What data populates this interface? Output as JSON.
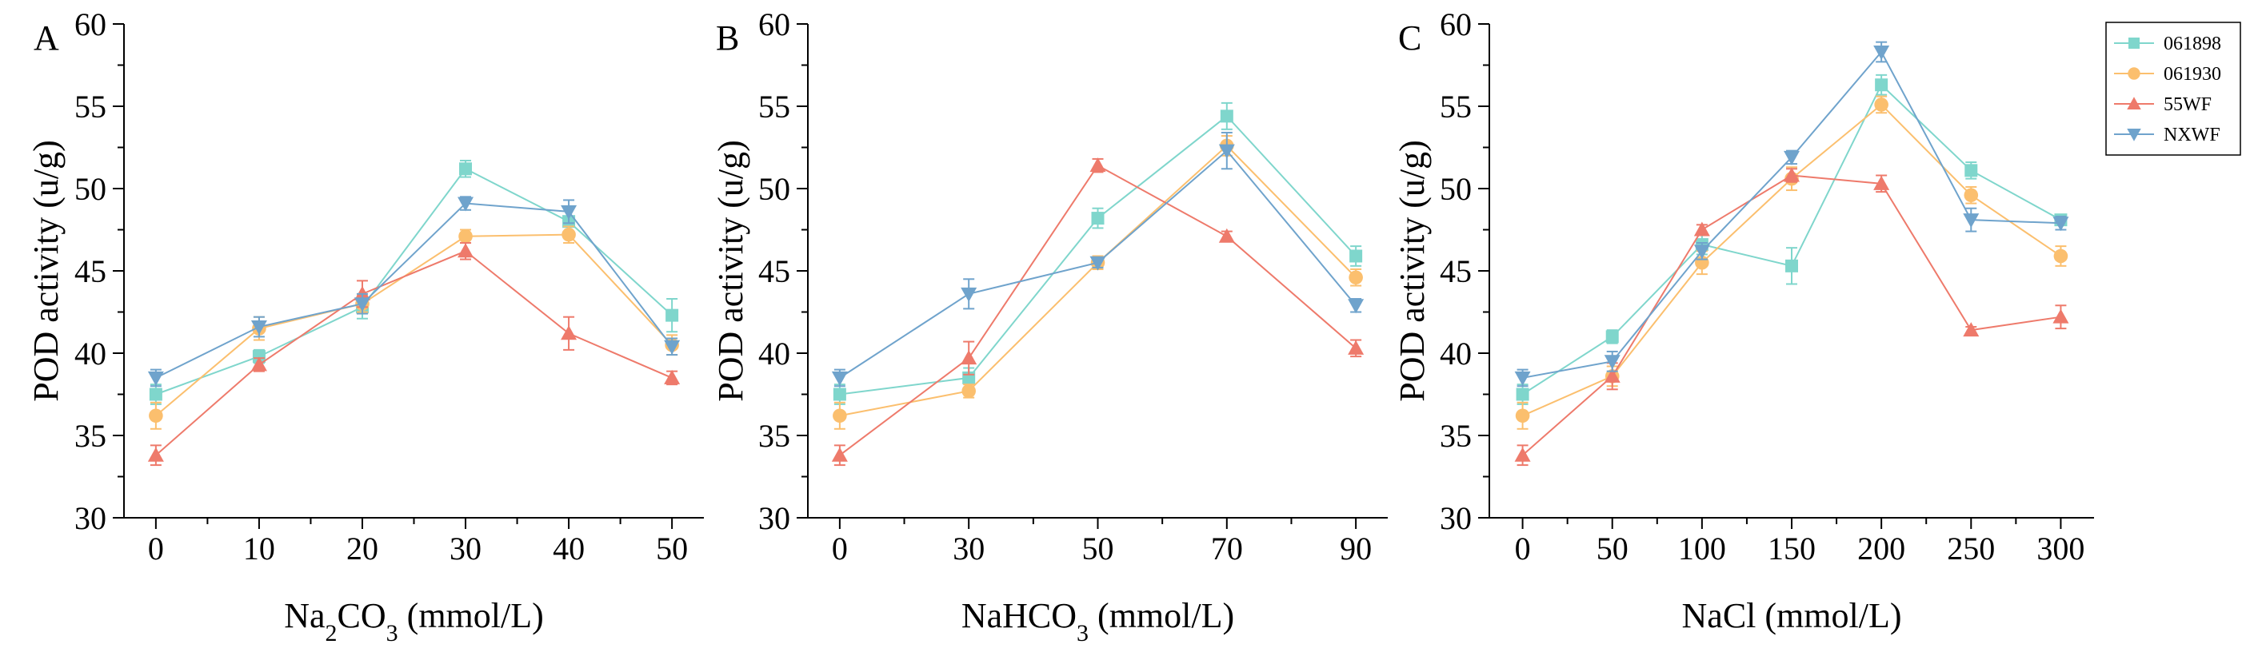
{
  "chart_data": [
    {
      "type": "line",
      "panel": "A",
      "xlabel_main": "Na",
      "xlabel_sub1": "2",
      "xlabel_mid": "CO",
      "xlabel_sub2": "3",
      "xlabel_tail": " (mmol/L)",
      "ylabel": "POD activity (u/g)",
      "categories": [
        "0",
        "10",
        "20",
        "30",
        "40",
        "50"
      ],
      "ylim": [
        30,
        60
      ],
      "yticks": [
        30,
        35,
        40,
        45,
        50,
        55,
        60
      ],
      "series": [
        {
          "name": "061898",
          "values": [
            37.5,
            39.8,
            42.8,
            51.2,
            48.0,
            42.3
          ],
          "errors": [
            0.6,
            0.4,
            0.7,
            0.5,
            0.9,
            1.0
          ]
        },
        {
          "name": "061930",
          "values": [
            36.2,
            41.5,
            43.0,
            47.1,
            47.2,
            40.5
          ],
          "errors": [
            0.8,
            0.7,
            0.5,
            0.4,
            0.5,
            0.6
          ]
        },
        {
          "name": "55WF",
          "values": [
            33.8,
            39.3,
            43.6,
            46.2,
            41.2,
            38.5
          ],
          "errors": [
            0.6,
            0.4,
            0.8,
            0.5,
            1.0,
            0.4
          ]
        },
        {
          "name": "NXWF",
          "values": [
            38.5,
            41.6,
            43.0,
            49.1,
            48.6,
            40.4
          ],
          "errors": [
            0.5,
            0.6,
            0.6,
            0.4,
            0.7,
            0.5
          ]
        }
      ]
    },
    {
      "type": "line",
      "panel": "B",
      "xlabel_main": "NaHCO",
      "xlabel_sub1": "",
      "xlabel_mid": "",
      "xlabel_sub2": "3",
      "xlabel_tail": " (mmol/L)",
      "ylabel": "POD activity (u/g)",
      "categories": [
        "0",
        "30",
        "50",
        "70",
        "90"
      ],
      "ylim": [
        30,
        60
      ],
      "yticks": [
        30,
        35,
        40,
        45,
        50,
        55,
        60
      ],
      "series": [
        {
          "name": "061898",
          "values": [
            37.5,
            38.5,
            48.2,
            54.4,
            45.9
          ],
          "errors": [
            0.6,
            0.6,
            0.6,
            0.8,
            0.6
          ]
        },
        {
          "name": "061930",
          "values": [
            36.2,
            37.7,
            45.5,
            52.6,
            44.6
          ],
          "errors": [
            0.8,
            0.4,
            0.4,
            0.6,
            0.5
          ]
        },
        {
          "name": "55WF",
          "values": [
            33.8,
            39.7,
            51.4,
            47.1,
            40.3
          ],
          "errors": [
            0.6,
            1.0,
            0.4,
            0.3,
            0.5
          ]
        },
        {
          "name": "NXWF",
          "values": [
            38.5,
            43.6,
            45.5,
            52.3,
            42.9
          ],
          "errors": [
            0.5,
            0.9,
            0.3,
            1.1,
            0.4
          ]
        }
      ]
    },
    {
      "type": "line",
      "panel": "C",
      "xlabel_main": "NaCl (mmol/L)",
      "xlabel_sub1": "",
      "xlabel_mid": "",
      "xlabel_sub2": "",
      "xlabel_tail": "",
      "ylabel": "POD activity (u/g)",
      "categories": [
        "0",
        "50",
        "100",
        "150",
        "200",
        "250",
        "300"
      ],
      "ylim": [
        30,
        60
      ],
      "yticks": [
        30,
        35,
        40,
        45,
        50,
        55,
        60
      ],
      "series": [
        {
          "name": "061898",
          "values": [
            37.5,
            41.0,
            46.6,
            45.3,
            56.3,
            51.1,
            48.1
          ],
          "errors": [
            0.6,
            0.4,
            0.6,
            1.1,
            0.6,
            0.5,
            0.3
          ]
        },
        {
          "name": "061930",
          "values": [
            36.2,
            38.6,
            45.5,
            50.6,
            55.1,
            49.6,
            45.9
          ],
          "errors": [
            0.8,
            0.6,
            0.7,
            0.7,
            0.5,
            0.5,
            0.6
          ]
        },
        {
          "name": "55WF",
          "values": [
            33.8,
            38.6,
            47.5,
            50.8,
            50.3,
            41.4,
            42.2
          ],
          "errors": [
            0.6,
            0.8,
            0.3,
            0.4,
            0.5,
            0.2,
            0.7
          ]
        },
        {
          "name": "NXWF",
          "values": [
            38.5,
            39.5,
            46.2,
            51.9,
            58.3,
            48.1,
            47.9
          ],
          "errors": [
            0.5,
            0.6,
            0.5,
            0.4,
            0.6,
            0.7,
            0.4
          ]
        }
      ]
    }
  ],
  "legend": {
    "placement": "top-right",
    "entries": [
      {
        "name": "061898",
        "color": "#7fd6cc",
        "marker": "square"
      },
      {
        "name": "061930",
        "color": "#fbbf6e",
        "marker": "circle"
      },
      {
        "name": "55WF",
        "color": "#ee7a6b",
        "marker": "triangle-up"
      },
      {
        "name": "NXWF",
        "color": "#6fa3cc",
        "marker": "triangle-down"
      }
    ]
  }
}
